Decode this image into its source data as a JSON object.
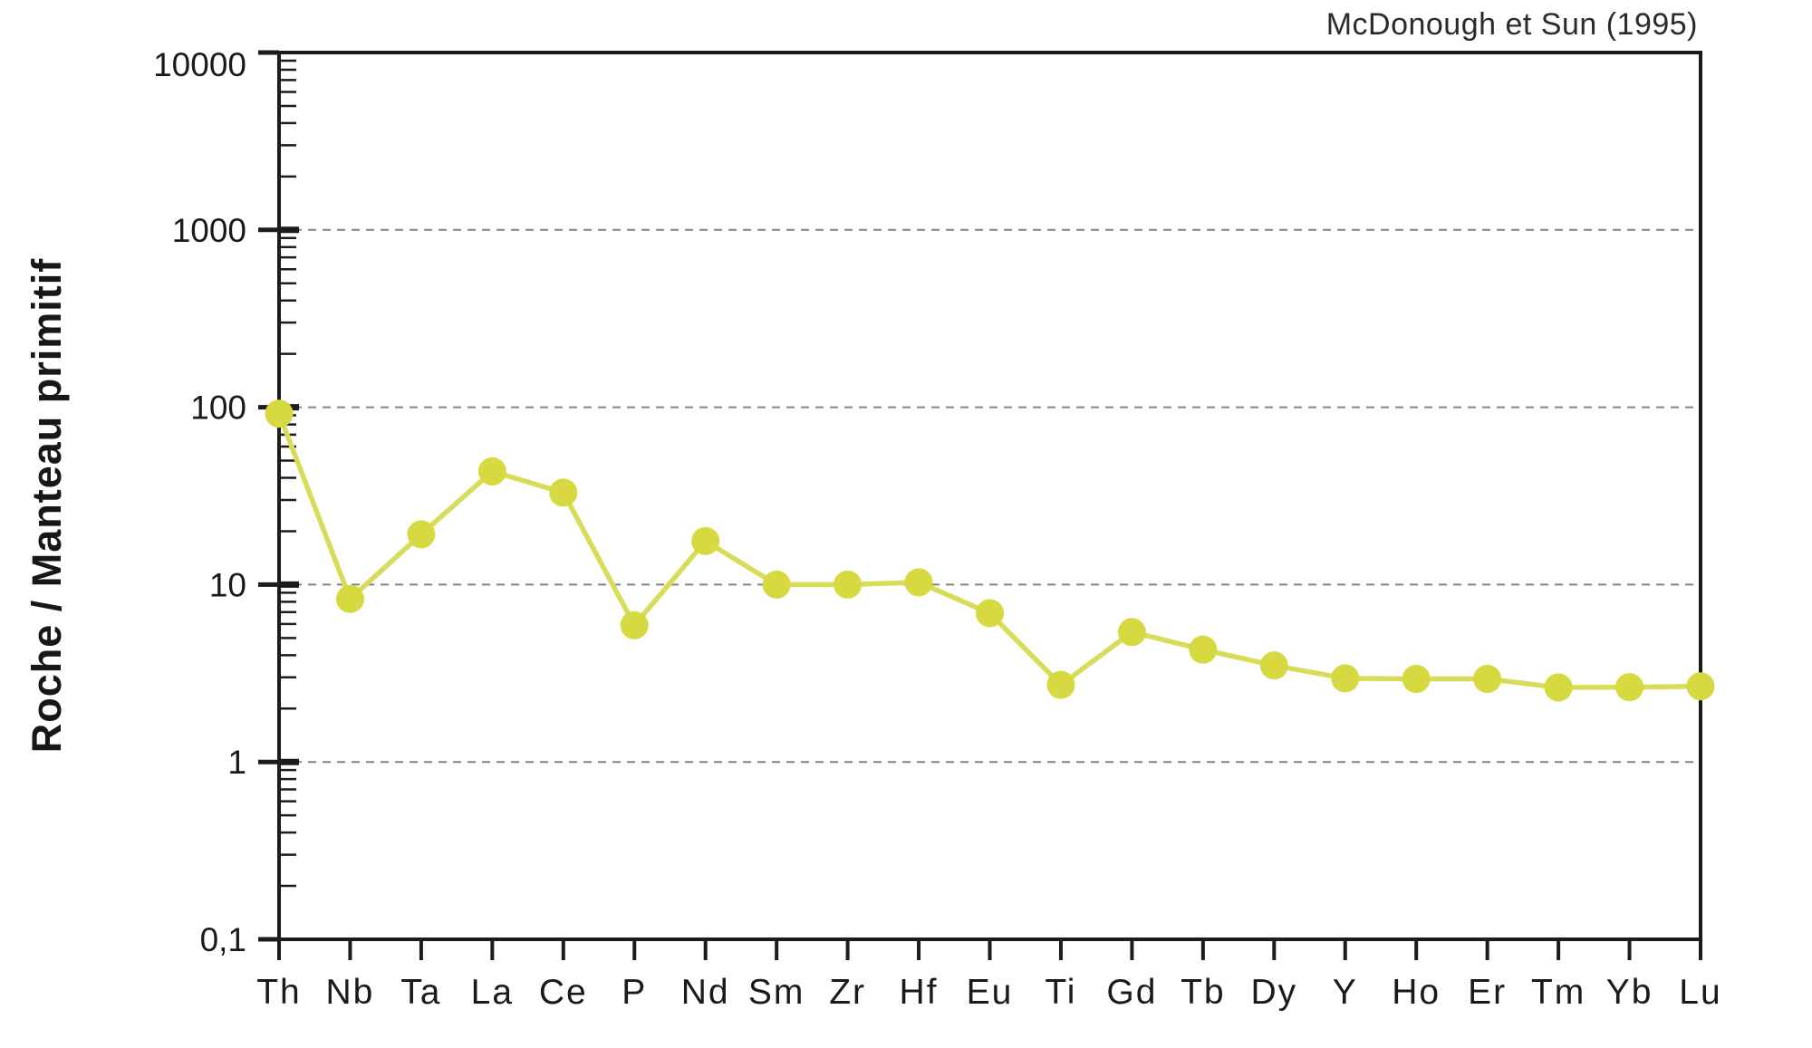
{
  "attribution": "McDonough et Sun (1995)",
  "chart_data": {
    "type": "line",
    "title": "McDonough et Sun (1995)",
    "ylabel": "Roche / Manteau primitif",
    "xlabel": "",
    "y_scale": "log",
    "ylim": [
      0.1,
      10000
    ],
    "grid": "horizontal dashed lines at 1, 10, 100, 1000",
    "legend": "none",
    "categories": [
      "Th",
      "Nb",
      "Ta",
      "La",
      "Ce",
      "P",
      "Nd",
      "Sm",
      "Zr",
      "Hf",
      "Eu",
      "Ti",
      "Gd",
      "Tb",
      "Dy",
      "Y",
      "Ho",
      "Er",
      "Tm",
      "Yb",
      "Lu"
    ],
    "series": [
      {
        "name": "Roche / Manteau primitif",
        "values": [
          92,
          8.3,
          19.2,
          43.5,
          33,
          5.9,
          17.6,
          10,
          10,
          10.3,
          6.9,
          2.72,
          5.4,
          4.3,
          3.5,
          2.96,
          2.94,
          2.94,
          2.63,
          2.64,
          2.67
        ]
      }
    ],
    "y_ticks": [
      {
        "label": "10000",
        "value": 10000
      },
      {
        "label": "1000",
        "value": 1000
      },
      {
        "label": "100",
        "value": 100
      },
      {
        "label": "10",
        "value": 10
      },
      {
        "label": "1",
        "value": 1
      },
      {
        "label": "0,1",
        "value": 0.1
      }
    ],
    "colors": {
      "line": "#d8dc58",
      "marker": "#d6d93f",
      "axis": "#1c1c1c",
      "grid": "#828282",
      "text": "#1a1a1a"
    }
  }
}
